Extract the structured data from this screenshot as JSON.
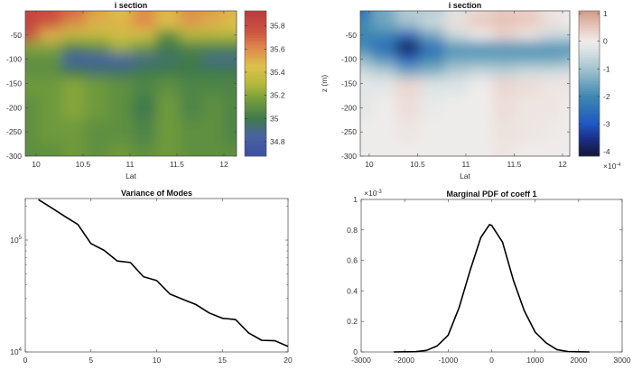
{
  "chart_data": [
    {
      "type": "heatmap",
      "title": "i section",
      "xlabel": "Lat",
      "ylabel": "",
      "xlim": [
        9.885,
        12.135
      ],
      "ylim": [
        -300,
        0
      ],
      "xticks": [
        10,
        10.5,
        11,
        11.5,
        12
      ],
      "xtick_labels": [
        "10",
        "10.5",
        "11",
        "11.5",
        "12"
      ],
      "yticks": [
        -300,
        -250,
        -200,
        -150,
        -100,
        -50
      ],
      "ytick_labels": [
        "-300",
        "-250",
        "-200",
        "-150",
        "-100",
        "-50"
      ],
      "lat": [
        9.9,
        10.15,
        10.4,
        10.65,
        10.9,
        11.15,
        11.4,
        11.65,
        11.9,
        12.1
      ],
      "depth": [
        0,
        -25,
        -50,
        -75,
        -100,
        -125,
        -150,
        -200,
        -250,
        -300
      ],
      "values": [
        [
          35.85,
          35.8,
          35.7,
          35.55,
          35.45,
          35.6,
          35.5,
          35.6,
          35.55,
          35.5
        ],
        [
          35.85,
          35.75,
          35.6,
          35.5,
          35.5,
          35.6,
          35.45,
          35.55,
          35.5,
          35.45
        ],
        [
          35.8,
          35.5,
          35.35,
          35.35,
          35.4,
          35.4,
          35.1,
          35.3,
          35.3,
          35.3
        ],
        [
          35.2,
          35.2,
          35.05,
          35.1,
          35.25,
          35.15,
          35.0,
          35.05,
          35.05,
          35.05
        ],
        [
          35.1,
          35.1,
          34.8,
          34.8,
          34.85,
          34.9,
          34.95,
          35.0,
          34.9,
          34.9
        ],
        [
          35.1,
          35.1,
          35.0,
          34.95,
          34.95,
          35.0,
          35.0,
          35.0,
          35.0,
          35.0
        ],
        [
          35.15,
          35.15,
          35.2,
          35.15,
          35.1,
          35.05,
          35.1,
          35.05,
          35.05,
          35.05
        ],
        [
          35.1,
          35.15,
          35.2,
          35.15,
          35.1,
          35.0,
          35.15,
          35.05,
          35.1,
          35.05
        ],
        [
          35.1,
          35.15,
          35.15,
          35.1,
          35.1,
          35.05,
          35.15,
          35.1,
          35.1,
          35.05
        ],
        [
          35.1,
          35.1,
          35.15,
          35.1,
          35.15,
          35.1,
          35.15,
          35.1,
          35.1,
          35.1
        ]
      ],
      "colorbar": {
        "clim": [
          34.675,
          35.93
        ],
        "ticks": [
          34.8,
          35,
          35.2,
          35.4,
          35.6,
          35.8
        ],
        "tick_labels": [
          "34.8",
          "35",
          "35.2",
          "35.4",
          "35.6",
          "35.8"
        ],
        "colormap": [
          [
            34.675,
            "#3b4fa3"
          ],
          [
            34.85,
            "#4a62a0"
          ],
          [
            35.0,
            "#3f7a4c"
          ],
          [
            35.15,
            "#6e9a3c"
          ],
          [
            35.3,
            "#b2b83c"
          ],
          [
            35.45,
            "#ddc24a"
          ],
          [
            35.6,
            "#df8c4c"
          ],
          [
            35.75,
            "#cc5542"
          ],
          [
            35.93,
            "#bb3a3c"
          ]
        ]
      }
    },
    {
      "type": "heatmap",
      "title": "i section",
      "xlabel": "Lat",
      "ylabel": "z (m)",
      "xlim": [
        9.907,
        12.075
      ],
      "ylim": [
        -300,
        0
      ],
      "xticks": [
        10,
        10.5,
        11,
        11.5,
        12
      ],
      "xtick_labels": [
        "10",
        "10.5",
        "11",
        "11.5",
        "12"
      ],
      "yticks": [
        -300,
        -250,
        -200,
        -150,
        -100,
        -50
      ],
      "ytick_labels": [
        "-300",
        "-250",
        "-200",
        "-150",
        "-100",
        "-50"
      ],
      "lat": [
        9.9,
        10.15,
        10.4,
        10.65,
        10.9,
        11.15,
        11.4,
        11.65,
        11.9,
        12.1
      ],
      "depth": [
        0,
        -25,
        -50,
        -75,
        -100,
        -125,
        -150,
        -200,
        -250,
        -300
      ],
      "values_scale": "1e-4",
      "values": [
        [
          -2.5,
          -1.5,
          -0.8,
          -0.8,
          -0.3,
          0.3,
          0.5,
          0.4,
          0.1,
          0
        ],
        [
          -2,
          -1.5,
          -1,
          -0.5,
          0.2,
          0.5,
          0.6,
          0.5,
          0.2,
          0
        ],
        [
          -2,
          -2,
          -2.6,
          -1.5,
          -0.5,
          0,
          0.3,
          0.1,
          -0.5,
          -0.5
        ],
        [
          -2,
          -2.6,
          -4,
          -2.5,
          -1.8,
          -1.8,
          -1.8,
          -1.8,
          -1.8,
          -1.8
        ],
        [
          -1.2,
          -1.8,
          -2.8,
          -2,
          -1.5,
          -1.5,
          -1.5,
          -1.5,
          -1.5,
          -1.3
        ],
        [
          -0.5,
          -0.8,
          -1.5,
          -1.3,
          -0.8,
          -0.6,
          -0.7,
          -0.5,
          -0.5,
          -0.4
        ],
        [
          -0.2,
          -0.2,
          0.3,
          -0.3,
          -0.3,
          0,
          0.3,
          0.2,
          0.1,
          0.1
        ],
        [
          -0.2,
          0,
          0.2,
          -0.1,
          0,
          0,
          0.2,
          0.1,
          0.1,
          0
        ],
        [
          0,
          0,
          0.1,
          0,
          0,
          0,
          0.15,
          0.1,
          0.05,
          0
        ],
        [
          0,
          0,
          0,
          0,
          0,
          0,
          0.1,
          0,
          0,
          0
        ]
      ],
      "colorbar": {
        "clim": [
          -4.16,
          1.1
        ],
        "ticks": [
          -4,
          -3,
          -2,
          -1,
          0,
          1
        ],
        "tick_labels": [
          "-4",
          "-3",
          "-2",
          "-1",
          "0",
          "1"
        ],
        "multiplier": {
          "prefix": "×10",
          "exp": "-4"
        },
        "colormap": [
          [
            -4.16,
            "#111634"
          ],
          [
            -3.5,
            "#1c2f8a"
          ],
          [
            -3,
            "#1f56c2"
          ],
          [
            -2,
            "#3c88b2"
          ],
          [
            -1,
            "#a3c3cd"
          ],
          [
            -0.3,
            "#dde3e4"
          ],
          [
            0,
            "#eeeceb"
          ],
          [
            0.5,
            "#e8c9bf"
          ],
          [
            1.1,
            "#d49b88"
          ]
        ]
      }
    },
    {
      "type": "line",
      "title": "Variance of Modes",
      "xlabel": "",
      "ylabel": "",
      "yscale": "log",
      "xlim": [
        0,
        20
      ],
      "ylim": [
        10000,
        235000
      ],
      "xticks": [
        0,
        5,
        10,
        15,
        20
      ],
      "xtick_labels": [
        "0",
        "5",
        "10",
        "15",
        "20"
      ],
      "yticks": [
        10000,
        100000
      ],
      "ytick_labels": [
        {
          "base": "10",
          "exp": "4"
        },
        {
          "base": "10",
          "exp": "5"
        }
      ],
      "x": [
        1,
        2,
        3,
        4,
        5,
        6,
        7,
        8,
        9,
        10,
        11,
        12,
        13,
        14,
        15,
        16,
        17,
        18,
        19,
        20
      ],
      "y": [
        230000,
        194000,
        163000,
        138000,
        93000,
        81000,
        65000,
        63000,
        47000,
        43500,
        33000,
        29500,
        26500,
        22300,
        20000,
        19500,
        14800,
        12700,
        12600,
        11200
      ]
    },
    {
      "type": "line",
      "title": "Marginal PDF of coeff 1",
      "xlabel": "",
      "ylabel": "",
      "xlim": [
        -3000,
        3000
      ],
      "ylim": [
        0,
        1
      ],
      "y_multiplier": {
        "prefix": "×10",
        "exp": "-3"
      },
      "xticks": [
        -3000,
        -2000,
        -1000,
        0,
        1000,
        2000,
        3000
      ],
      "xtick_labels": [
        "-3000",
        "-2000",
        "-1000",
        "0",
        "1000",
        "2000",
        "3000"
      ],
      "yticks": [
        0,
        0.2,
        0.4,
        0.6,
        0.8,
        1
      ],
      "ytick_labels": [
        "0",
        "0.2",
        "0.4",
        "0.6",
        "0.8",
        "1"
      ],
      "x": [
        -2250,
        -2000,
        -1750,
        -1500,
        -1250,
        -1000,
        -750,
        -500,
        -250,
        -50,
        0,
        250,
        500,
        750,
        1000,
        1250,
        1500,
        1750,
        2000,
        2250
      ],
      "y": [
        0,
        0.001,
        0.002,
        0.01,
        0.04,
        0.11,
        0.29,
        0.53,
        0.75,
        0.835,
        0.83,
        0.72,
        0.47,
        0.27,
        0.13,
        0.06,
        0.015,
        0.003,
        0.001,
        0
      ]
    }
  ]
}
